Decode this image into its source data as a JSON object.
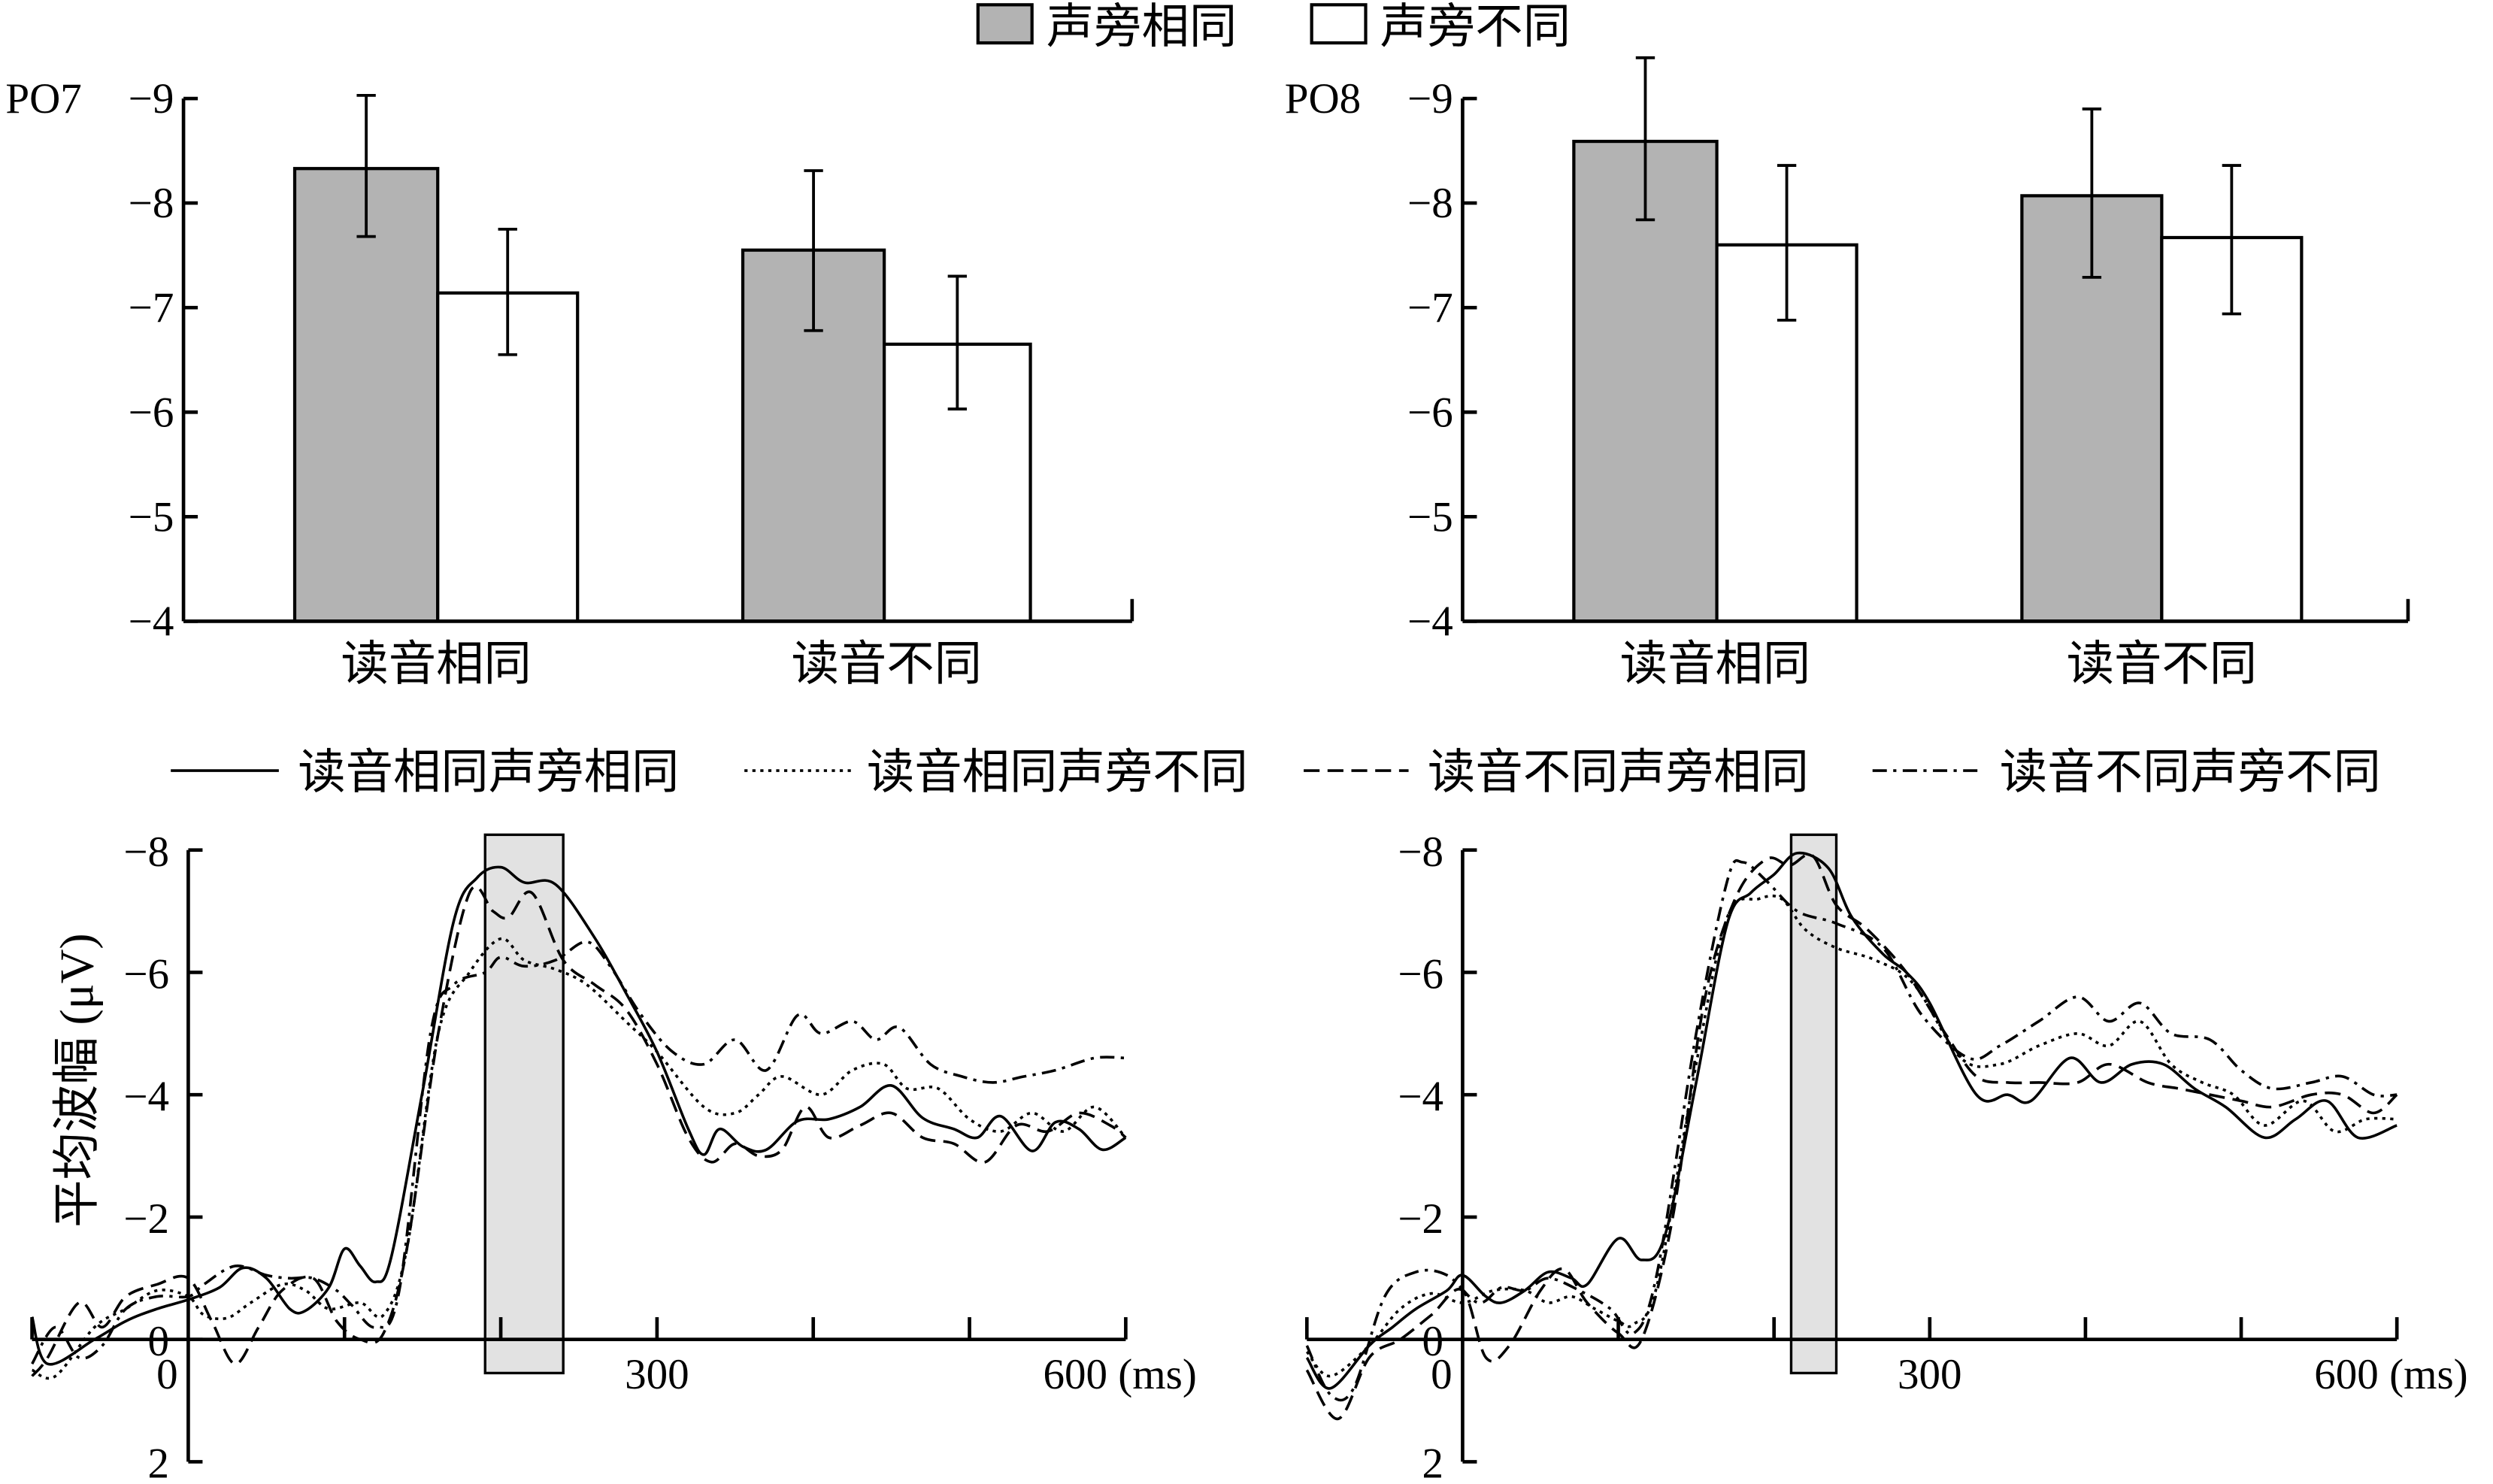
{
  "colors": {
    "same_radical": "#b3b3b3",
    "diff_radical": "#ffffff",
    "window": "#e2e2e2",
    "ink": "#000000"
  },
  "bar_legend": [
    {
      "label": "声旁相同",
      "swatch": "same_radical"
    },
    {
      "label": "声旁不同",
      "swatch": "diff_radical"
    }
  ],
  "line_legend": [
    {
      "label": "读音相同声旁相同",
      "style": "solid"
    },
    {
      "label": "读音相同声旁不同",
      "style": "dotted"
    },
    {
      "label": "读音不同声旁相同",
      "style": "dashed"
    },
    {
      "label": "读音不同声旁不同",
      "style": "dashdot"
    }
  ],
  "chart_data": [
    {
      "type": "bar",
      "panel_label": "PO7",
      "categories": [
        "读音相同",
        "读音不同"
      ],
      "ylim": [
        -4,
        -9
      ],
      "yticks": [
        "−9",
        "−8",
        "−7",
        "−6",
        "−5",
        "−4"
      ],
      "ytick_values": [
        -9,
        -8,
        -7,
        -6,
        -5,
        -4
      ],
      "series": [
        {
          "name": "声旁相同",
          "values": [
            -8.33,
            -7.55
          ],
          "err_high": [
            -9.03,
            -8.31
          ],
          "err_low": [
            -7.68,
            -6.78
          ]
        },
        {
          "name": "声旁不同",
          "values": [
            -7.14,
            -6.65
          ],
          "err_high": [
            -7.75,
            -7.3
          ],
          "err_low": [
            -6.55,
            -6.03
          ]
        }
      ]
    },
    {
      "type": "bar",
      "panel_label": "PO8",
      "categories": [
        "读音相同",
        "读音不同"
      ],
      "ylim": [
        -4,
        -9
      ],
      "yticks": [
        "−9",
        "−8",
        "−7",
        "−6",
        "−5",
        "−4"
      ],
      "ytick_values": [
        -9,
        -8,
        -7,
        -6,
        -5,
        -4
      ],
      "series": [
        {
          "name": "声旁相同",
          "values": [
            -8.59,
            -8.07
          ],
          "err_high": [
            -9.39,
            -8.9
          ],
          "err_low": [
            -7.84,
            -7.29
          ]
        },
        {
          "name": "声旁不同",
          "values": [
            -7.6,
            -7.67
          ],
          "err_high": [
            -8.36,
            -8.36
          ],
          "err_low": [
            -6.88,
            -6.94
          ]
        }
      ]
    },
    {
      "type": "line",
      "panel_label": "PO7",
      "ylabel": "平均波幅 (μV)",
      "xlim": [
        -100,
        600
      ],
      "ylim": [
        2,
        -8
      ],
      "yticks": [
        "−8",
        "−6",
        "−4",
        "−2",
        "0",
        "2"
      ],
      "ytick_values": [
        -8,
        -6,
        -4,
        -2,
        0,
        2
      ],
      "xtick_labels": [
        "0",
        "300",
        "600 (ms)"
      ],
      "xtick_label_values": [
        0,
        300,
        600
      ],
      "xtick_marks": [
        100,
        200,
        300,
        400,
        500,
        600
      ],
      "window_ms": [
        190,
        240
      ],
      "series": [
        {
          "name": "读音相同声旁相同",
          "style": "solid",
          "x": [
            -100,
            -90,
            -60,
            -40,
            -20,
            0,
            20,
            35,
            50,
            65,
            75,
            90,
            100,
            110,
            120,
            130,
            150,
            170,
            185,
            200,
            215,
            235,
            260,
            280,
            300,
            320,
            330,
            340,
            355,
            370,
            390,
            410,
            430,
            450,
            470,
            490,
            505,
            520,
            540,
            555,
            570,
            585,
            600
          ],
          "y": [
            -0.37,
            0.4,
            0,
            -0.3,
            -0.5,
            -0.65,
            -0.85,
            -1.17,
            -1.0,
            -0.5,
            -0.47,
            -0.85,
            -1.48,
            -1.2,
            -0.94,
            -1.35,
            -4.06,
            -6.85,
            -7.55,
            -7.72,
            -7.47,
            -7.44,
            -6.57,
            -5.67,
            -4.7,
            -3.44,
            -3.02,
            -3.44,
            -3.15,
            -3.1,
            -3.57,
            -3.6,
            -3.8,
            -4.15,
            -3.62,
            -3.44,
            -3.3,
            -3.65,
            -3.08,
            -3.55,
            -3.44,
            -3.1,
            -3.3
          ]
        },
        {
          "name": "读音相同声旁不同",
          "style": "dotted",
          "x": [
            -100,
            -85,
            -60,
            -40,
            -20,
            0,
            10,
            25,
            40,
            60,
            75,
            90,
            110,
            125,
            140,
            160,
            180,
            200,
            215,
            235,
            255,
            280,
            300,
            330,
            350,
            365,
            380,
            405,
            425,
            445,
            460,
            480,
            500,
            520,
            540,
            560,
            580,
            600
          ],
          "y": [
            0.5,
            0.6,
            -0.2,
            -0.5,
            -0.8,
            -0.7,
            -0.4,
            -0.35,
            -0.6,
            -0.9,
            -0.8,
            -0.5,
            -0.6,
            -0.4,
            -1.5,
            -5.0,
            -6.0,
            -6.55,
            -6.2,
            -6.05,
            -5.8,
            -5.2,
            -4.7,
            -3.8,
            -3.7,
            -4.0,
            -4.3,
            -4.0,
            -4.4,
            -4.5,
            -4.1,
            -4.1,
            -3.6,
            -3.4,
            -3.7,
            -3.4,
            -3.8,
            -3.3
          ]
        },
        {
          "name": "读音不同声旁相同",
          "style": "dashed",
          "x": [
            -100,
            -90,
            -70,
            -55,
            -40,
            -20,
            0,
            15,
            30,
            45,
            60,
            80,
            95,
            110,
            125,
            140,
            160,
            180,
            195,
            205,
            220,
            240,
            260,
            280,
            300,
            320,
            335,
            350,
            365,
            380,
            395,
            410,
            430,
            450,
            470,
            490,
            510,
            530,
            550,
            570,
            590,
            600
          ],
          "y": [
            0.6,
            0.3,
            -0.6,
            -0.2,
            -0.7,
            -0.9,
            -1.0,
            -0.3,
            0.4,
            -0.2,
            -0.8,
            -1.0,
            -0.3,
            0,
            -0.1,
            -1.5,
            -5.0,
            -7.3,
            -7.0,
            -6.9,
            -7.3,
            -6.2,
            -5.8,
            -5.4,
            -4.5,
            -3.3,
            -2.9,
            -3.2,
            -3.0,
            -3.1,
            -3.8,
            -3.3,
            -3.5,
            -3.7,
            -3.3,
            -3.2,
            -2.9,
            -3.5,
            -3.4,
            -3.7,
            -3.5,
            -3.3
          ]
        },
        {
          "name": "读音不同声旁不同",
          "style": "dashdot",
          "x": [
            -100,
            -85,
            -70,
            -55,
            -40,
            -20,
            0,
            10,
            30,
            50,
            65,
            80,
            95,
            105,
            120,
            135,
            155,
            170,
            190,
            200,
            215,
            235,
            255,
            270,
            290,
            310,
            330,
            350,
            370,
            390,
            405,
            425,
            440,
            455,
            475,
            495,
            515,
            535,
            555,
            580,
            600
          ],
          "y": [
            0.4,
            -0.2,
            0.3,
            0.1,
            -0.5,
            -0.7,
            -0.7,
            -0.9,
            -1.2,
            -1.05,
            -1.0,
            -1.0,
            -0.8,
            -0.55,
            -0.2,
            -0.8,
            -5.0,
            -5.8,
            -6.0,
            -6.25,
            -6.1,
            -6.2,
            -6.5,
            -6.1,
            -5.3,
            -4.7,
            -4.5,
            -4.9,
            -4.4,
            -5.3,
            -5.0,
            -5.2,
            -4.9,
            -5.1,
            -4.5,
            -4.3,
            -4.2,
            -4.3,
            -4.4,
            -4.6,
            -4.6
          ]
        }
      ]
    },
    {
      "type": "line",
      "panel_label": "PO8",
      "xlim": [
        -100,
        600
      ],
      "ylim": [
        2,
        -8
      ],
      "yticks": [
        "−8",
        "−6",
        "−4",
        "−2",
        "0",
        "2"
      ],
      "ytick_values": [
        -8,
        -6,
        -4,
        -2,
        0,
        2
      ],
      "xtick_labels": [
        "0",
        "300",
        "600 (ms)"
      ],
      "xtick_label_values": [
        0,
        300,
        600
      ],
      "xtick_marks": [
        100,
        200,
        300,
        400,
        500,
        600
      ],
      "window_ms": [
        211,
        240
      ],
      "series": [
        {
          "name": "读音相同声旁相同",
          "style": "solid",
          "x": [
            -100,
            -85,
            -60,
            -45,
            -30,
            -10,
            0,
            15,
            25,
            40,
            55,
            70,
            80,
            100,
            115,
            130,
            150,
            170,
            185,
            200,
            215,
            235,
            250,
            270,
            285,
            300,
            330,
            350,
            365,
            390,
            410,
            430,
            450,
            470,
            490,
            515,
            535,
            555,
            575,
            600
          ],
          "y": [
            0.3,
            0.8,
            0.1,
            -0.2,
            -0.5,
            -0.8,
            -1.05,
            -0.7,
            -0.6,
            -0.8,
            -1.1,
            -1.0,
            -0.9,
            -1.65,
            -1.3,
            -1.7,
            -4.2,
            -6.8,
            -7.3,
            -7.6,
            -7.95,
            -7.7,
            -6.9,
            -6.3,
            -6.0,
            -5.5,
            -4.0,
            -4.0,
            -3.9,
            -4.6,
            -4.2,
            -4.5,
            -4.5,
            -4.1,
            -3.8,
            -3.3,
            -3.6,
            -3.9,
            -3.3,
            -3.5
          ]
        },
        {
          "name": "读音相同声旁不同",
          "style": "dotted",
          "x": [
            -100,
            -85,
            -60,
            -40,
            -20,
            0,
            20,
            40,
            55,
            70,
            85,
            100,
            110,
            125,
            150,
            170,
            190,
            205,
            220,
            240,
            265,
            290,
            320,
            345,
            370,
            395,
            415,
            435,
            455,
            475,
            495,
            515,
            540,
            560,
            580,
            600
          ],
          "y": [
            0.2,
            0.6,
            0.1,
            -0.5,
            -0.75,
            -0.6,
            -0.8,
            -0.8,
            -0.6,
            -0.7,
            -0.5,
            -0.3,
            -0.25,
            -0.9,
            -4.5,
            -6.9,
            -7.2,
            -7.2,
            -6.7,
            -6.4,
            -6.2,
            -5.8,
            -4.6,
            -4.5,
            -4.8,
            -5.0,
            -4.8,
            -5.2,
            -4.5,
            -4.2,
            -4.0,
            -3.5,
            -3.9,
            -3.4,
            -3.6,
            -3.6
          ]
        },
        {
          "name": "读音不同声旁相同",
          "style": "dashed",
          "x": [
            -100,
            -80,
            -60,
            -40,
            -20,
            0,
            15,
            30,
            50,
            65,
            80,
            100,
            115,
            135,
            155,
            175,
            195,
            210,
            225,
            240,
            260,
            285,
            310,
            330,
            350,
            370,
            395,
            415,
            440,
            460,
            480,
            500,
            520,
            545,
            565,
            585,
            600
          ],
          "y": [
            0.5,
            1.3,
            0.3,
            0,
            -0.4,
            -0.8,
            0.3,
            0.1,
            -0.8,
            -1.15,
            -0.6,
            -0.1,
            0,
            -2.0,
            -5.5,
            -7.2,
            -7.85,
            -7.75,
            -7.9,
            -7.1,
            -6.7,
            -6.0,
            -5.0,
            -4.3,
            -4.2,
            -4.2,
            -4.2,
            -4.5,
            -4.2,
            -4.1,
            -4.0,
            -3.9,
            -3.8,
            -4.0,
            -4.0,
            -3.7,
            -4.0
          ]
        },
        {
          "name": "读音不同声旁不同",
          "style": "dashdot",
          "x": [
            -100,
            -85,
            -70,
            -50,
            -30,
            -10,
            10,
            25,
            40,
            55,
            75,
            95,
            110,
            125,
            150,
            170,
            180,
            195,
            215,
            240,
            270,
            295,
            325,
            345,
            370,
            395,
            415,
            435,
            455,
            480,
            500,
            520,
            545,
            565,
            585,
            600
          ],
          "y": [
            0.1,
            0.9,
            0.8,
            -0.7,
            -1.1,
            -1.05,
            -0.6,
            -0.85,
            -0.8,
            -1.0,
            -0.8,
            -0.5,
            -0.1,
            -1.1,
            -5.0,
            -7.5,
            -7.8,
            -7.5,
            -7.0,
            -6.8,
            -6.4,
            -5.3,
            -4.6,
            -4.8,
            -5.2,
            -5.6,
            -5.2,
            -5.5,
            -5.0,
            -4.9,
            -4.4,
            -4.1,
            -4.2,
            -4.3,
            -4.0,
            -4.0
          ]
        }
      ]
    }
  ]
}
